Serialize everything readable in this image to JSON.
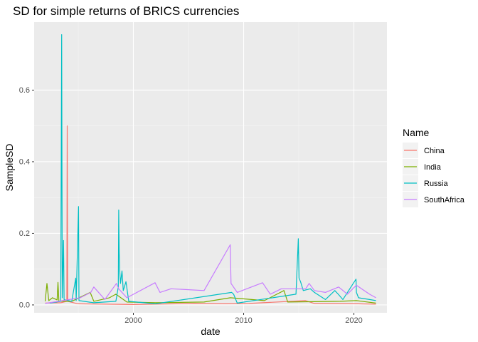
{
  "chart_data": {
    "type": "line",
    "title": "SD for simple returns of BRICS currencies",
    "xlabel": "date",
    "ylabel": "SampleSD",
    "xlim": [
      "1991-01-01",
      "2022-12-31"
    ],
    "ylim": [
      -0.022,
      0.79
    ],
    "x_ticks": [
      {
        "value": "2000-01-01",
        "label": "2000"
      },
      {
        "value": "2010-01-01",
        "label": "2010"
      },
      {
        "value": "2020-01-01",
        "label": "2020"
      }
    ],
    "y_ticks": [
      {
        "value": 0.0,
        "label": "0.0"
      },
      {
        "value": 0.2,
        "label": "0.2"
      },
      {
        "value": 0.4,
        "label": "0.4"
      },
      {
        "value": 0.6,
        "label": "0.6"
      }
    ],
    "grid": true,
    "legend": {
      "title": "Name",
      "position": "right"
    },
    "series": [
      {
        "name": "China",
        "color": "#F8766D",
        "points": [
          [
            "1992-01-01",
            0.005
          ],
          [
            "1993-06-01",
            0.006
          ],
          [
            "1993-12-20",
            0.01
          ],
          [
            "1994-01-01",
            0.5
          ],
          [
            "1994-01-15",
            0.01
          ],
          [
            "1995-01-01",
            0.003
          ],
          [
            "2000-01-01",
            0.001
          ],
          [
            "2005-07-20",
            0.004
          ],
          [
            "2008-06-01",
            0.003
          ],
          [
            "2010-06-20",
            0.004
          ],
          [
            "2015-08-11",
            0.012
          ],
          [
            "2016-06-01",
            0.004
          ],
          [
            "2020-06-01",
            0.003
          ],
          [
            "2021-12-31",
            0.002
          ]
        ]
      },
      {
        "name": "India",
        "color": "#7CAE00",
        "points": [
          [
            "1992-01-01",
            0.01
          ],
          [
            "1992-03-01",
            0.06
          ],
          [
            "1992-05-01",
            0.012
          ],
          [
            "1992-09-01",
            0.02
          ],
          [
            "1993-02-01",
            0.014
          ],
          [
            "1993-03-01",
            0.063
          ],
          [
            "1993-04-01",
            0.01
          ],
          [
            "1994-06-01",
            0.01
          ],
          [
            "1995-10-01",
            0.03
          ],
          [
            "1996-02-01",
            0.035
          ],
          [
            "1996-06-01",
            0.01
          ],
          [
            "1997-11-01",
            0.02
          ],
          [
            "1998-06-01",
            0.03
          ],
          [
            "1999-06-01",
            0.008
          ],
          [
            "2002-01-01",
            0.006
          ],
          [
            "2006-06-01",
            0.008
          ],
          [
            "2008-10-20",
            0.02
          ],
          [
            "2011-11-20",
            0.012
          ],
          [
            "2013-08-28",
            0.04
          ],
          [
            "2014-01-01",
            0.008
          ],
          [
            "2018-10-01",
            0.01
          ],
          [
            "2020-03-20",
            0.012
          ],
          [
            "2021-12-31",
            0.005
          ]
        ]
      },
      {
        "name": "Russia",
        "color": "#00BFC4",
        "points": [
          [
            "1992-06-01",
            0.005
          ],
          [
            "1993-06-01",
            0.01
          ],
          [
            "1993-07-01",
            0.755
          ],
          [
            "1993-07-20",
            0.02
          ],
          [
            "1993-09-01",
            0.18
          ],
          [
            "1993-09-20",
            0.015
          ],
          [
            "1994-06-01",
            0.01
          ],
          [
            "1994-10-11",
            0.075
          ],
          [
            "1994-10-25",
            0.012
          ],
          [
            "1995-01-10",
            0.275
          ],
          [
            "1995-01-25",
            0.012
          ],
          [
            "1996-06-01",
            0.006
          ],
          [
            "1998-06-01",
            0.01
          ],
          [
            "1998-08-20",
            0.05
          ],
          [
            "1998-09-03",
            0.265
          ],
          [
            "1998-09-20",
            0.145
          ],
          [
            "1998-10-10",
            0.09
          ],
          [
            "1998-11-01",
            0.06
          ],
          [
            "1998-12-20",
            0.095
          ],
          [
            "1999-02-01",
            0.04
          ],
          [
            "1999-05-01",
            0.065
          ],
          [
            "1999-08-01",
            0.01
          ],
          [
            "2002-01-01",
            0.003
          ],
          [
            "2008-12-01",
            0.035
          ],
          [
            "2009-02-01",
            0.03
          ],
          [
            "2009-06-01",
            0.005
          ],
          [
            "2014-10-01",
            0.03
          ],
          [
            "2014-12-16",
            0.185
          ],
          [
            "2015-01-10",
            0.075
          ],
          [
            "2015-03-01",
            0.065
          ],
          [
            "2015-06-01",
            0.04
          ],
          [
            "2016-01-20",
            0.045
          ],
          [
            "2016-06-01",
            0.035
          ],
          [
            "2017-06-01",
            0.015
          ],
          [
            "2018-04-10",
            0.04
          ],
          [
            "2018-08-01",
            0.03
          ],
          [
            "2019-01-01",
            0.015
          ],
          [
            "2020-03-10",
            0.072
          ],
          [
            "2020-03-25",
            0.035
          ],
          [
            "2020-06-01",
            0.02
          ],
          [
            "2021-06-01",
            0.015
          ],
          [
            "2021-12-31",
            0.012
          ]
        ]
      },
      {
        "name": "SouthAfrica",
        "color": "#C77CFF",
        "points": [
          [
            "1992-01-01",
            0.004
          ],
          [
            "1995-03-10",
            0.02
          ],
          [
            "1996-02-20",
            0.035
          ],
          [
            "1996-06-01",
            0.05
          ],
          [
            "1997-06-01",
            0.015
          ],
          [
            "1998-06-20",
            0.06
          ],
          [
            "1998-09-01",
            0.045
          ],
          [
            "1999-06-01",
            0.02
          ],
          [
            "2001-12-20",
            0.062
          ],
          [
            "2002-06-01",
            0.035
          ],
          [
            "2003-06-01",
            0.045
          ],
          [
            "2006-06-01",
            0.04
          ],
          [
            "2008-10-15",
            0.168
          ],
          [
            "2008-11-10",
            0.06
          ],
          [
            "2009-06-01",
            0.035
          ],
          [
            "2011-09-20",
            0.062
          ],
          [
            "2012-06-01",
            0.03
          ],
          [
            "2013-06-01",
            0.045
          ],
          [
            "2015-08-20",
            0.045
          ],
          [
            "2015-12-10",
            0.06
          ],
          [
            "2016-06-01",
            0.04
          ],
          [
            "2017-06-01",
            0.035
          ],
          [
            "2018-08-13",
            0.05
          ],
          [
            "2019-06-01",
            0.03
          ],
          [
            "2020-03-20",
            0.055
          ],
          [
            "2021-06-01",
            0.03
          ],
          [
            "2021-12-31",
            0.02
          ]
        ]
      }
    ]
  }
}
